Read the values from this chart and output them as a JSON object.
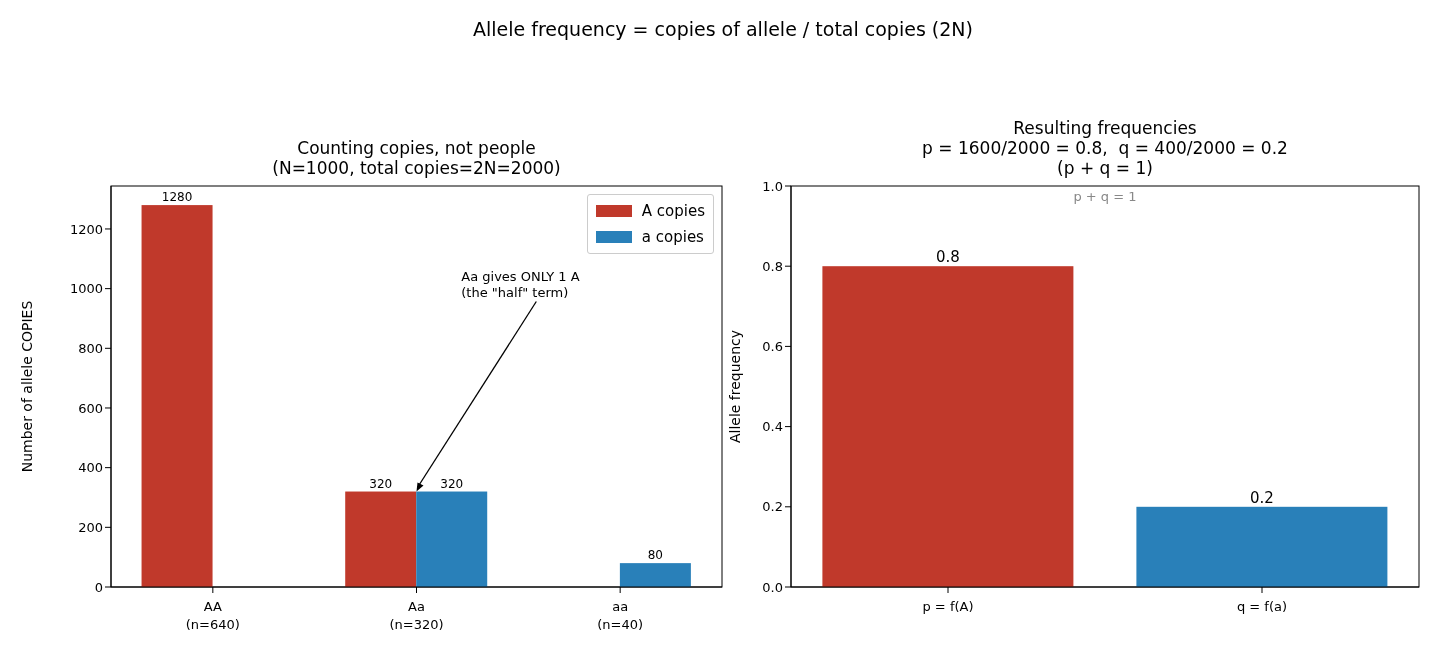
{
  "chart_data": [
    {
      "type": "bar",
      "title": "Allele frequency = copies of allele / total copies (2N)",
      "subtitle": "Counting copies, not people\n(N=1000, total copies=2N=2000)",
      "ylabel": "Number of allele COPIES",
      "categories": [
        "AA\n(n=640)",
        "Aa\n(n=320)",
        "aa\n(n=40)"
      ],
      "series": [
        {
          "name": "A copies",
          "color": "#c0392b",
          "values": [
            1280,
            320,
            0
          ],
          "value_labels": [
            "1280",
            "320",
            null
          ]
        },
        {
          "name": "a copies",
          "color": "#2980b9",
          "values": [
            0,
            320,
            80
          ],
          "value_labels": [
            null,
            "320",
            "80"
          ]
        }
      ],
      "ylim": [
        0,
        1344
      ],
      "yticks": [
        0,
        200,
        400,
        600,
        800,
        1000,
        1200
      ],
      "legend": "top right",
      "annotations": [
        {
          "text": "Aa gives ONLY 1 A\n(the \"half\" term)",
          "x": "Aa\n(n=320)",
          "y": 320
        }
      ]
    },
    {
      "type": "bar",
      "title": "Resulting frequencies\np = 1600/2000 = 0.8,  q = 400/2000 = 0.2\n(p + q = 1)",
      "ylabel": "Allele frequency",
      "categories": [
        "p = f(A)",
        "q = f(a)"
      ],
      "values": [
        0.8,
        0.2
      ],
      "colors": [
        "#c0392b",
        "#2980b9"
      ],
      "data_labels": true,
      "ylim": [
        0,
        1
      ],
      "yticks": [
        {
          "value": 0,
          "label": "0.0"
        },
        {
          "value": 0.2,
          "label": "0.2"
        },
        {
          "value": 0.4,
          "label": "0.4"
        },
        {
          "value": 0.6,
          "label": "0.6"
        },
        {
          "value": 0.8,
          "label": "0.8"
        },
        {
          "value": 1,
          "label": "1.0"
        }
      ],
      "annotations": [
        "p + q = 1"
      ]
    }
  ]
}
